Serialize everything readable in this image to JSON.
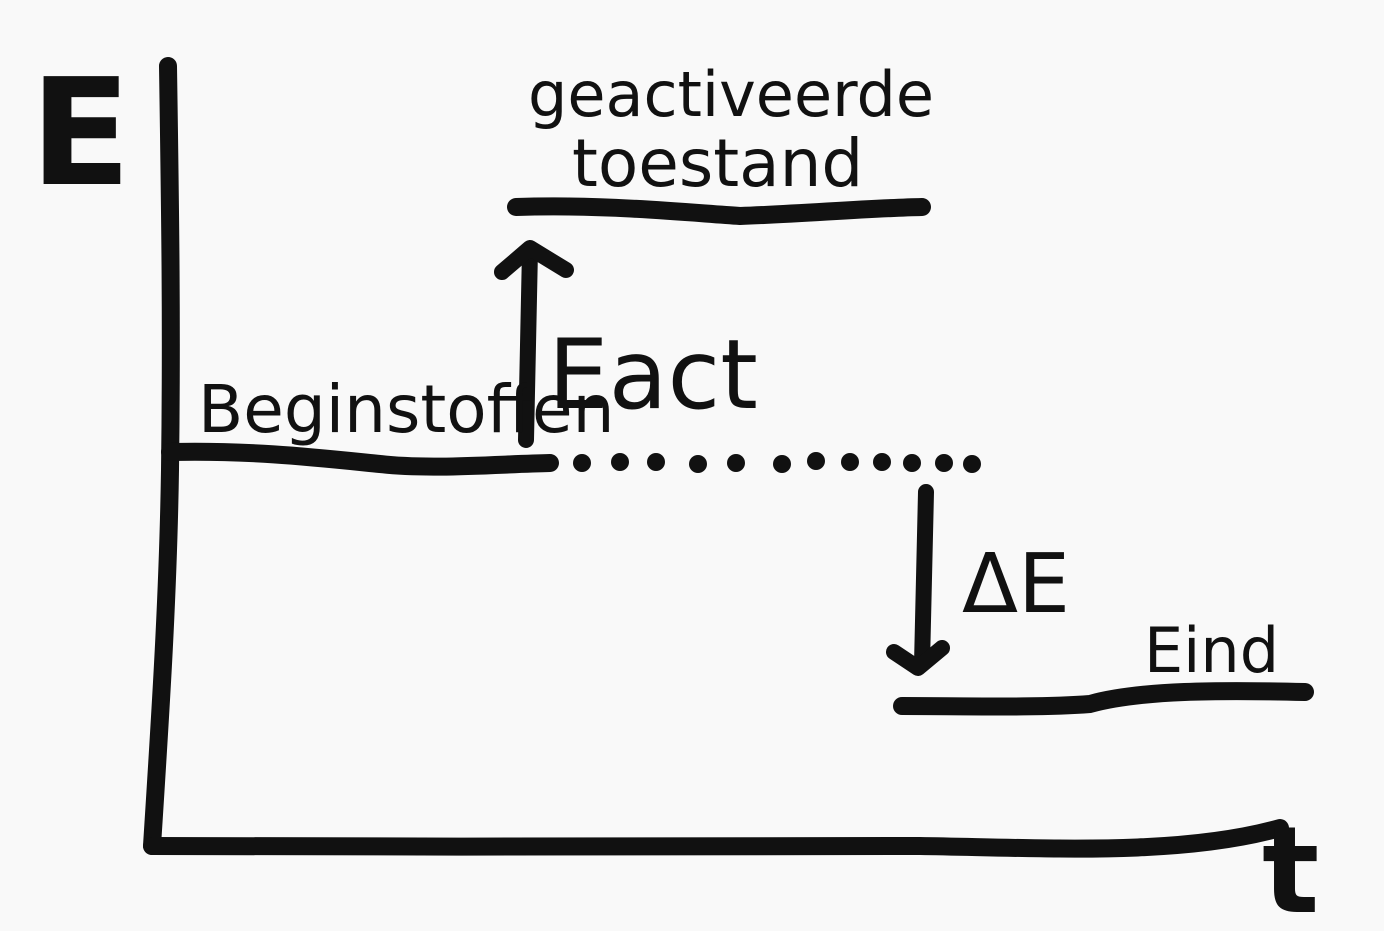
{
  "diagram": {
    "axes": {
      "y_label": "E",
      "x_label": "t"
    },
    "levels": {
      "start_label": "Beginstoffen",
      "activated_label_line1": "geactiveerde",
      "activated_label_line2": "toestand",
      "end_label": "Eind"
    },
    "arrows": {
      "activation_label": "Eact",
      "delta_label": "ΔE"
    },
    "colors": {
      "ink": "#111111",
      "background": "#f9f9f9"
    }
  }
}
